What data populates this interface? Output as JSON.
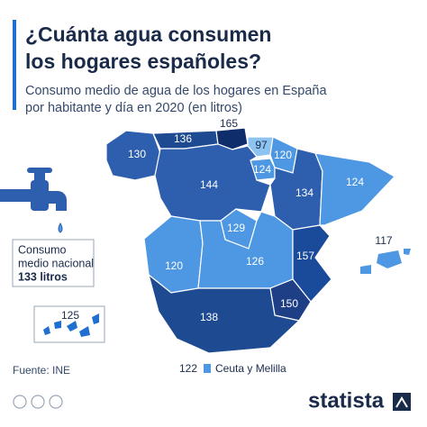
{
  "title": [
    "¿Cuánta agua consumen",
    "los hogares españoles?"
  ],
  "subtitle": [
    "Consumo medio de agua de los hogares en España",
    "por habitante y día en 2020 (en litros)"
  ],
  "regions": [
    {
      "value": 130
    },
    {
      "value": 136
    },
    {
      "value": 165
    },
    {
      "value": 97
    },
    {
      "value": 120
    },
    {
      "value": 124
    },
    {
      "value": 144
    },
    {
      "value": 134
    },
    {
      "value": 124
    },
    {
      "value": 129
    },
    {
      "value": 120
    },
    {
      "value": 126
    },
    {
      "value": 157
    },
    {
      "value": 117
    },
    {
      "value": 150
    },
    {
      "value": 138
    },
    {
      "value": 125
    }
  ],
  "callout": {
    "lines": [
      "Consumo",
      "medio nacional"
    ],
    "highlight": "133 litros"
  },
  "legend": {
    "value": 122,
    "label": "Ceuta y Melilla"
  },
  "source": "Fuente: INE",
  "brand": "statista"
}
